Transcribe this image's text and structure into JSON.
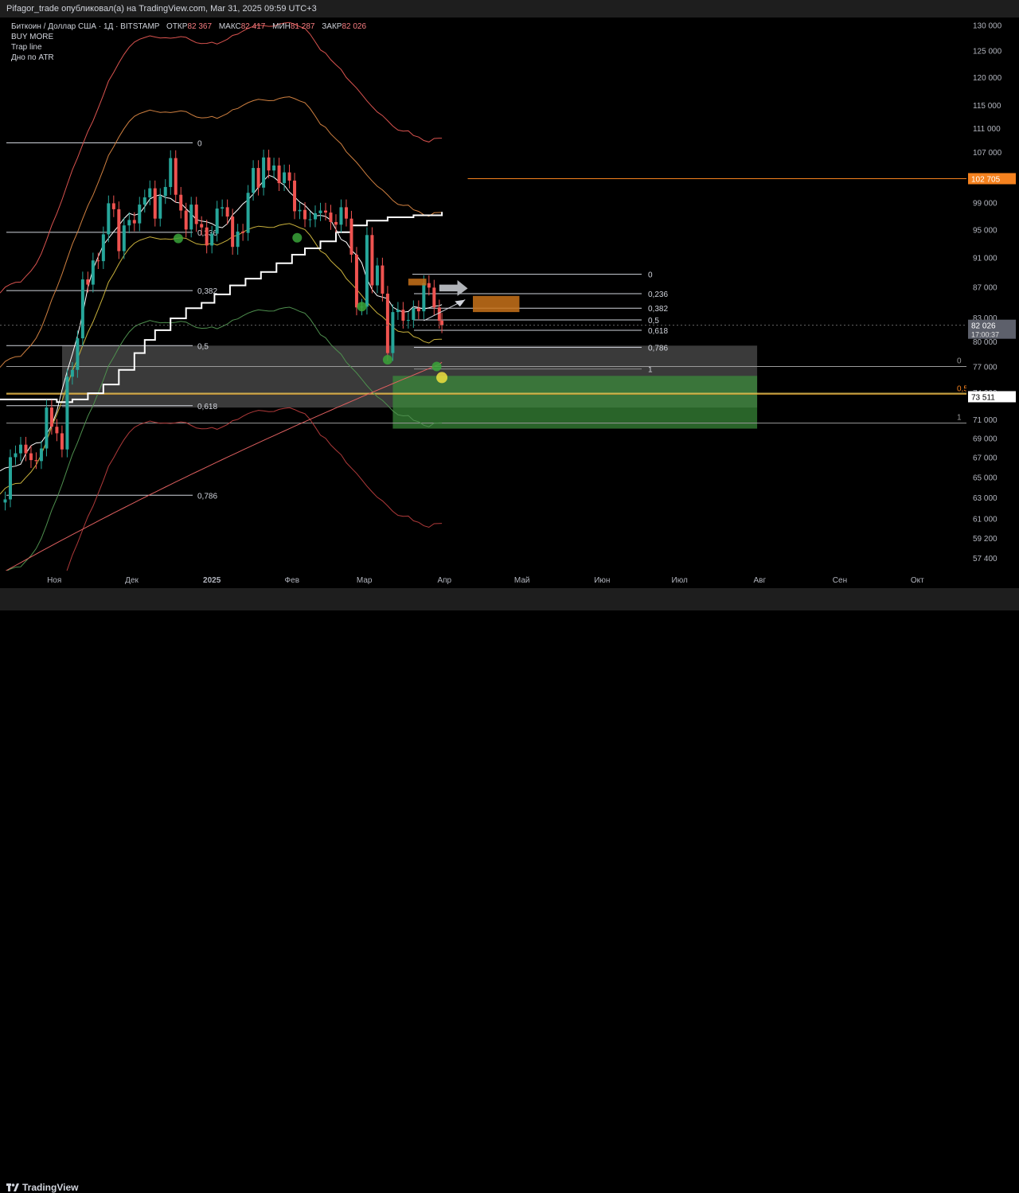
{
  "header": {
    "published": "Pifagor_trade опубликовал(а) на TradingView.com, Mar 31, 2025 09:59 UTC+3"
  },
  "legend": {
    "symbol": "Биткоин / Доллар США · 1Д · BITSTAMP",
    "open_label": "ОТКР",
    "open_value": "82 367",
    "high_label": "МАКС",
    "high_value": "82 417",
    "low_label": "МИН",
    "low_value": "81 287",
    "close_label": "ЗАКР",
    "close_value": "82 026",
    "indicators": [
      "BUY MORE",
      "Trap line",
      "Дно по ATR"
    ]
  },
  "footer": {
    "brand": "TradingView"
  },
  "colors": {
    "bull": "#26a69a",
    "bear": "#ef5350",
    "accent": "#f5821f",
    "green_zone": "#3a8f3a",
    "staircase": "#ffffff"
  },
  "chart_data": {
    "type": "candlestick",
    "symbol": "BTCUSD",
    "timeframe": "1D",
    "exchange": "BITSTAMP",
    "y_axis": {
      "scale": "log",
      "ticks": [
        57400,
        59200,
        61000,
        63000,
        65000,
        67000,
        69000,
        71000,
        74000,
        77000,
        80000,
        83000,
        87000,
        91000,
        95000,
        99000,
        107000,
        111000,
        115000,
        120000,
        125000,
        130000
      ],
      "tick_labels": [
        "57 400",
        "59 200",
        "61 000",
        "63 000",
        "65 000",
        "67 000",
        "69 000",
        "71 000",
        "74 000",
        "77 000",
        "80 000",
        "83 000",
        "87 000",
        "91 000",
        "95 000",
        "99 000",
        "107 000",
        "111 000",
        "115 000",
        "120 000",
        "125 000",
        "130 000"
      ],
      "range": [
        56300,
        131500
      ]
    },
    "x_axis": {
      "ticks": [
        "Ноя",
        "Дек",
        "2025",
        "Фев",
        "Мар",
        "Апр",
        "Май",
        "Июн",
        "Июл",
        "Авг",
        "Сен",
        "Окт"
      ],
      "range": [
        "2024-10-11",
        "2025-10-20"
      ]
    },
    "price_badges": [
      {
        "value": "102 705",
        "price": 102705
      },
      {
        "value": "82 026",
        "price": 82026,
        "countdown": "17:00:37"
      },
      {
        "value": "73 511",
        "price": 73511
      }
    ],
    "candles_daily_close": [
      [
        "2024-10-11",
        62500
      ],
      [
        "2024-10-13",
        62800
      ],
      [
        "2024-10-15",
        67000
      ],
      [
        "2024-10-17",
        67400
      ],
      [
        "2024-10-19",
        68300
      ],
      [
        "2024-10-21",
        67400
      ],
      [
        "2024-10-23",
        66700
      ],
      [
        "2024-10-25",
        66600
      ],
      [
        "2024-10-27",
        67900
      ],
      [
        "2024-10-29",
        72300
      ],
      [
        "2024-10-31",
        70200
      ],
      [
        "2024-11-02",
        69500
      ],
      [
        "2024-11-04",
        67800
      ],
      [
        "2024-11-06",
        75800
      ],
      [
        "2024-11-08",
        76600
      ],
      [
        "2024-11-10",
        80400
      ],
      [
        "2024-11-12",
        88000
      ],
      [
        "2024-11-14",
        87300
      ],
      [
        "2024-11-16",
        90600
      ],
      [
        "2024-11-18",
        90500
      ],
      [
        "2024-11-20",
        94300
      ],
      [
        "2024-11-22",
        98900
      ],
      [
        "2024-11-24",
        98000
      ],
      [
        "2024-11-26",
        91900
      ],
      [
        "2024-11-28",
        95600
      ],
      [
        "2024-11-30",
        96400
      ],
      [
        "2024-12-02",
        95900
      ],
      [
        "2024-12-04",
        98700
      ],
      [
        "2024-12-06",
        99800
      ],
      [
        "2024-12-08",
        101200
      ],
      [
        "2024-12-10",
        96600
      ],
      [
        "2024-12-12",
        100000
      ],
      [
        "2024-12-14",
        101400
      ],
      [
        "2024-12-16",
        106000
      ],
      [
        "2024-12-18",
        100200
      ],
      [
        "2024-12-20",
        97800
      ],
      [
        "2024-12-22",
        95000
      ],
      [
        "2024-12-24",
        98700
      ],
      [
        "2024-12-26",
        95800
      ],
      [
        "2024-12-28",
        95300
      ],
      [
        "2024-12-30",
        92700
      ],
      [
        "2025-01-01",
        94400
      ],
      [
        "2025-01-03",
        98100
      ],
      [
        "2025-01-05",
        98300
      ],
      [
        "2025-01-07",
        96900
      ],
      [
        "2025-01-09",
        92500
      ],
      [
        "2025-01-11",
        94700
      ],
      [
        "2025-01-13",
        94500
      ],
      [
        "2025-01-15",
        100500
      ],
      [
        "2025-01-17",
        104400
      ],
      [
        "2025-01-19",
        101300
      ],
      [
        "2025-01-21",
        106100
      ],
      [
        "2025-01-23",
        104000
      ],
      [
        "2025-01-25",
        104800
      ],
      [
        "2025-01-27",
        102000
      ],
      [
        "2025-01-29",
        103700
      ],
      [
        "2025-01-31",
        102400
      ],
      [
        "2025-02-02",
        97700
      ],
      [
        "2025-02-04",
        97900
      ],
      [
        "2025-02-06",
        96500
      ],
      [
        "2025-02-08",
        96500
      ],
      [
        "2025-02-10",
        97400
      ],
      [
        "2025-02-12",
        97800
      ],
      [
        "2025-02-14",
        97500
      ],
      [
        "2025-02-16",
        96100
      ],
      [
        "2025-02-18",
        95700
      ],
      [
        "2025-02-20",
        98300
      ],
      [
        "2025-02-22",
        96600
      ],
      [
        "2025-02-24",
        91400
      ],
      [
        "2025-02-26",
        84300
      ],
      [
        "2025-02-28",
        84400
      ],
      [
        "2025-03-02",
        94200
      ],
      [
        "2025-03-04",
        87200
      ],
      [
        "2025-03-06",
        89900
      ],
      [
        "2025-03-08",
        86100
      ],
      [
        "2025-03-10",
        78600
      ],
      [
        "2025-03-12",
        83700
      ],
      [
        "2025-03-14",
        84000
      ],
      [
        "2025-03-16",
        82600
      ],
      [
        "2025-03-18",
        82700
      ],
      [
        "2025-03-20",
        84200
      ],
      [
        "2025-03-22",
        83800
      ],
      [
        "2025-03-24",
        87500
      ],
      [
        "2025-03-26",
        86900
      ],
      [
        "2025-03-28",
        84300
      ],
      [
        "2025-03-30",
        82600
      ],
      [
        "2025-03-31",
        82026
      ]
    ],
    "overlays": {
      "left_fib_levels": [
        {
          "label": "0",
          "price": 108500
        },
        {
          "label": "0,236",
          "price": 94600
        },
        {
          "label": "0,382",
          "price": 86500
        },
        {
          "label": "0,5",
          "price": 79500
        },
        {
          "label": "0,618",
          "price": 72500
        },
        {
          "label": "0,786",
          "price": 63200
        }
      ],
      "right_fib_levels": [
        {
          "label": "0",
          "price": 88700
        },
        {
          "label": "0,236",
          "price": 86100
        },
        {
          "label": "0,382",
          "price": 84200
        },
        {
          "label": "0,5",
          "price": 82700
        },
        {
          "label": "0,618",
          "price": 81400
        },
        {
          "label": "0,786",
          "price": 79300
        },
        {
          "label": "1",
          "price": 76700
        }
      ],
      "zone_fib_levels": [
        {
          "label": "0",
          "price": 77000
        },
        {
          "label": "0,5",
          "price": 73800
        },
        {
          "label": "1",
          "price": 70600
        }
      ],
      "grey_zone": {
        "top": 79500,
        "bottom": 72300,
        "start": "2024-10-11",
        "end": "2025-07-31"
      },
      "green_zone": {
        "top": 75900,
        "bottom": 70000,
        "start": "2025-03-12",
        "end": "2025-07-31"
      },
      "resistance_line": {
        "price": 102705,
        "start": "2025-04-10"
      },
      "orange_box_top": {
        "top": 88100,
        "bottom": 87200,
        "start": "2025-03-18",
        "end": "2025-03-25"
      },
      "orange_box_target": {
        "top": 85800,
        "bottom": 83700,
        "start": "2025-04-12",
        "end": "2025-04-30"
      },
      "trap_line_stair": [
        [
          "2024-10-11",
          73200
        ],
        [
          "2024-10-28",
          73200
        ],
        [
          "2024-11-02",
          72900
        ],
        [
          "2024-11-08",
          73200
        ],
        [
          "2024-11-14",
          73900
        ],
        [
          "2024-11-20",
          74900
        ],
        [
          "2024-11-26",
          76600
        ],
        [
          "2024-12-02",
          78600
        ],
        [
          "2024-12-06",
          80200
        ],
        [
          "2024-12-10",
          81400
        ],
        [
          "2024-12-16",
          82900
        ],
        [
          "2024-12-22",
          84200
        ],
        [
          "2024-12-28",
          84900
        ],
        [
          "2025-01-02",
          86000
        ],
        [
          "2025-01-08",
          87200
        ],
        [
          "2025-01-14",
          88100
        ],
        [
          "2025-01-20",
          89000
        ],
        [
          "2025-01-26",
          90200
        ],
        [
          "2025-02-01",
          91400
        ],
        [
          "2025-02-06",
          92300
        ],
        [
          "2025-02-12",
          93300
        ],
        [
          "2025-02-18",
          94600
        ],
        [
          "2025-02-24",
          95600
        ],
        [
          "2025-03-02",
          96300
        ],
        [
          "2025-03-10",
          96800
        ],
        [
          "2025-03-20",
          97100
        ],
        [
          "2025-03-31",
          97600
        ]
      ],
      "markers": [
        {
          "date": "2024-12-19",
          "price": 93700,
          "color": "green"
        },
        {
          "date": "2025-02-03",
          "price": 93800,
          "color": "green"
        },
        {
          "date": "2025-02-28",
          "price": 84400,
          "color": "green"
        },
        {
          "date": "2025-03-10",
          "price": 77800,
          "color": "green"
        },
        {
          "date": "2025-03-29",
          "price": 77000,
          "color": "green"
        },
        {
          "date": "2025-03-31",
          "price": 75700,
          "color": "yellow"
        }
      ]
    }
  }
}
